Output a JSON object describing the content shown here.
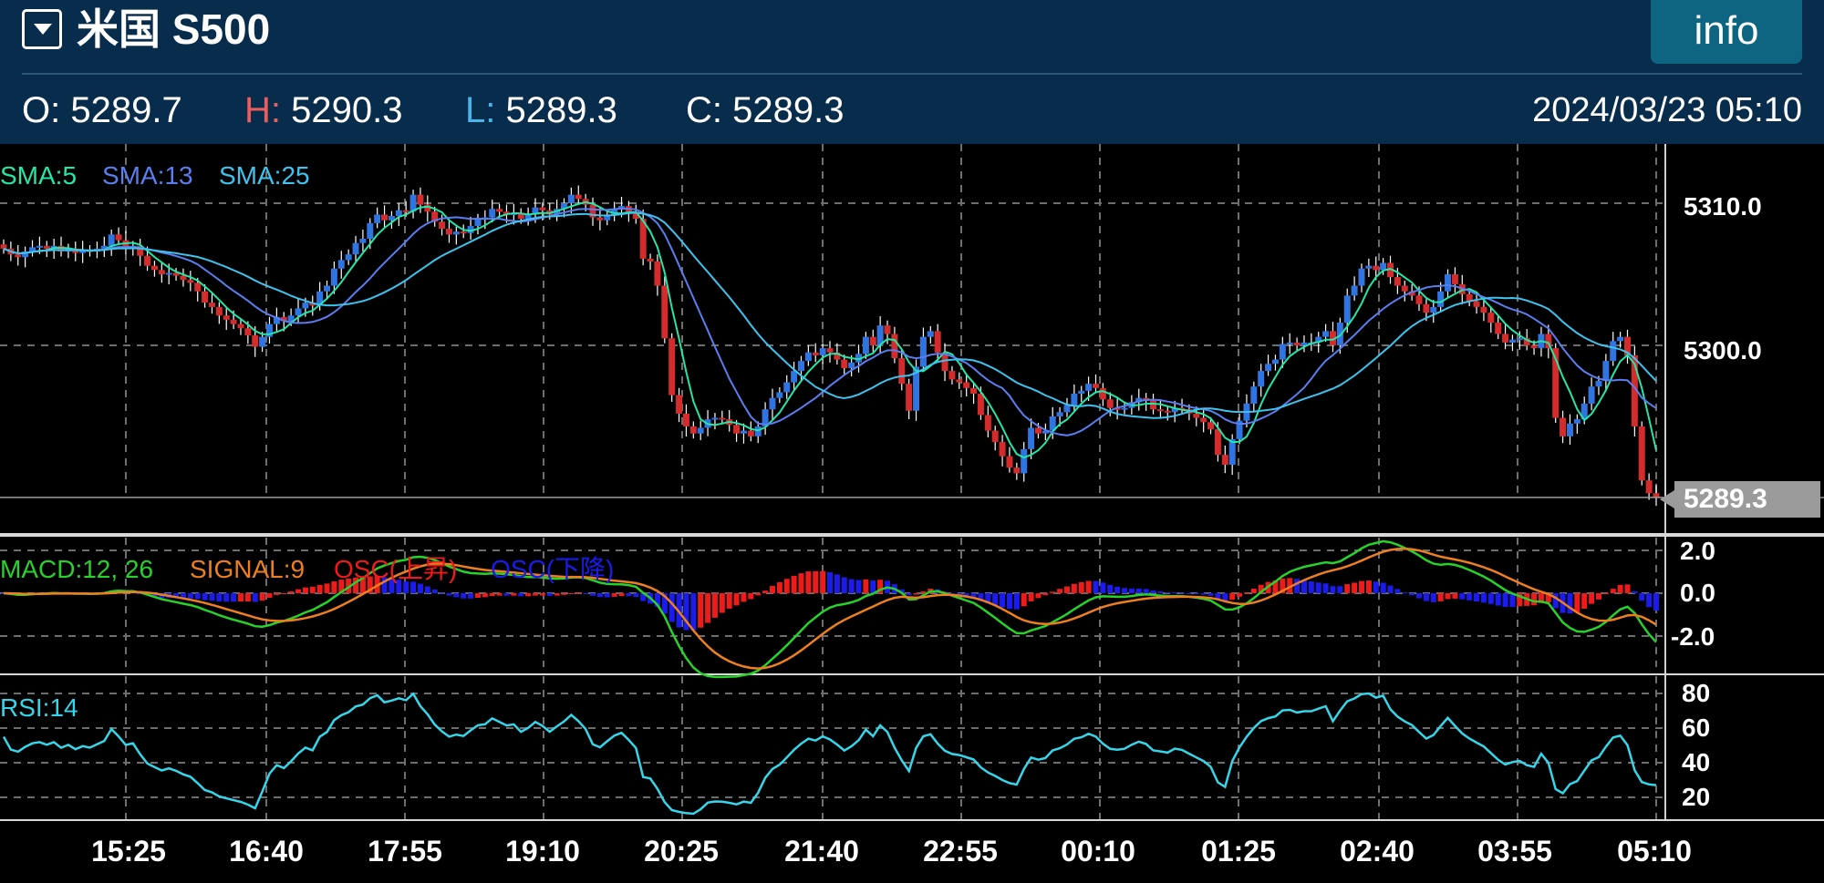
{
  "header": {
    "title": "米国 S500",
    "info_label": "info"
  },
  "ohlc": {
    "open_label": "O:",
    "open": "5289.7",
    "high_label": "H:",
    "high": "5290.3",
    "low_label": "L:",
    "low": "5289.3",
    "close_label": "C:",
    "close": "5289.3",
    "datetime": "2024/03/23 05:10"
  },
  "indicators": {
    "sma_labels": [
      "SMA:5",
      "SMA:13",
      "SMA:25"
    ],
    "macd_labels": [
      "MACD:12, 26",
      "SIGNAL:9",
      "OSC(上昇)",
      "OSC(下降)"
    ],
    "rsi_label": "RSI:14"
  },
  "axes": {
    "price_ticks": [
      "5310.0",
      "5300.0"
    ],
    "last_price": "5289.3",
    "macd_ticks": [
      "2.0",
      "0.0",
      "-2.0"
    ],
    "rsi_ticks": [
      "80",
      "60",
      "40",
      "20"
    ],
    "time_ticks": [
      "15:25",
      "16:40",
      "17:55",
      "19:10",
      "20:25",
      "21:40",
      "22:55",
      "00:10",
      "01:25",
      "02:40",
      "03:55",
      "05:10"
    ]
  },
  "colors": {
    "up_candle": "#2f74e0",
    "down_candle": "#d52b2b",
    "sma5": "#24e6a6",
    "sma13": "#5a7ef0",
    "sma25": "#3ec3ee",
    "macd": "#27d22a",
    "signal": "#ee7f1f",
    "osc_up": "#ee1b1b",
    "osc_down": "#1b1bee",
    "rsi": "#35d6ea",
    "high_label": "#e85d5d",
    "low_label": "#4ab3ea"
  },
  "chart_data": {
    "type": "candlestick",
    "interval_minutes": 5,
    "x_ticks": [
      "15:25",
      "16:40",
      "17:55",
      "19:10",
      "20:25",
      "21:40",
      "22:55",
      "00:10",
      "01:25",
      "02:40",
      "03:55",
      "05:10"
    ],
    "close": [
      5306.8,
      5306.4,
      5306.2,
      5306.6,
      5306.9,
      5307.0,
      5306.8,
      5307.0,
      5306.6,
      5306.8,
      5306.5,
      5306.7,
      5306.6,
      5306.8,
      5307.0,
      5307.8,
      5307.4,
      5306.9,
      5307.0,
      5306.3,
      5305.6,
      5305.3,
      5305.0,
      5305.1,
      5304.9,
      5304.6,
      5304.4,
      5303.8,
      5303.0,
      5302.7,
      5302.1,
      5301.8,
      5301.5,
      5301.2,
      5300.7,
      5299.9,
      5300.6,
      5301.5,
      5302.0,
      5301.7,
      5302.1,
      5302.6,
      5303.0,
      5302.8,
      5303.8,
      5304.2,
      5305.4,
      5306.0,
      5306.4,
      5307.2,
      5307.5,
      5308.6,
      5309.2,
      5308.8,
      5309.1,
      5309.5,
      5309.4,
      5310.6,
      5309.9,
      5309.4,
      5308.7,
      5308.2,
      5307.8,
      5308.0,
      5307.9,
      5308.4,
      5308.9,
      5309.0,
      5309.6,
      5309.4,
      5309.2,
      5309.3,
      5308.9,
      5309.2,
      5309.7,
      5309.5,
      5309.2,
      5309.6,
      5310.0,
      5310.6,
      5310.3,
      5309.9,
      5309.0,
      5308.8,
      5309.2,
      5309.6,
      5309.8,
      5309.4,
      5308.9,
      5306.1,
      5305.9,
      5304.2,
      5300.5,
      5296.5,
      5295.2,
      5294.3,
      5293.8,
      5294.2,
      5294.8,
      5294.9,
      5294.8,
      5294.4,
      5293.8,
      5294.0,
      5293.6,
      5294.3,
      5295.5,
      5296.3,
      5296.7,
      5297.4,
      5298.2,
      5298.9,
      5299.5,
      5299.3,
      5299.8,
      5299.5,
      5299.0,
      5298.4,
      5298.8,
      5299.4,
      5300.6,
      5300.0,
      5301.4,
      5300.8,
      5299.1,
      5297.3,
      5295.4,
      5298.5,
      5300.6,
      5301.0,
      5299.5,
      5298.2,
      5297.6,
      5297.4,
      5297.0,
      5296.6,
      5295.1,
      5294.0,
      5293.2,
      5292.2,
      5291.4,
      5291.0,
      5292.7,
      5294.2,
      5293.8,
      5294.0,
      5295.0,
      5295.3,
      5295.8,
      5296.6,
      5296.8,
      5297.3,
      5297.0,
      5296.2,
      5295.6,
      5295.5,
      5295.6,
      5296.0,
      5296.3,
      5296.1,
      5295.5,
      5295.4,
      5295.3,
      5295.6,
      5295.5,
      5295.2,
      5294.9,
      5294.6,
      5294.1,
      5292.3,
      5291.6,
      5293.4,
      5294.7,
      5295.9,
      5297.1,
      5298.2,
      5298.7,
      5299.0,
      5300.1,
      5300.2,
      5300.0,
      5300.2,
      5300.2,
      5300.6,
      5301.0,
      5300.0,
      5301.6,
      5303.5,
      5304.2,
      5305.4,
      5305.6,
      5305.3,
      5305.8,
      5304.8,
      5304.2,
      5303.8,
      5303.5,
      5302.9,
      5302.3,
      5302.7,
      5303.8,
      5305.0,
      5304.3,
      5303.6,
      5303.1,
      5302.7,
      5302.3,
      5301.6,
      5300.8,
      5300.2,
      5300.4,
      5300.5,
      5300.0,
      5299.8,
      5300.8,
      5299.8,
      5294.9,
      5293.6,
      5294.5,
      5294.8,
      5295.9,
      5297.1,
      5297.5,
      5298.9,
      5300.3,
      5300.6,
      5299.3,
      5294.3,
      5290.5,
      5289.6,
      5289.3
    ]
  }
}
